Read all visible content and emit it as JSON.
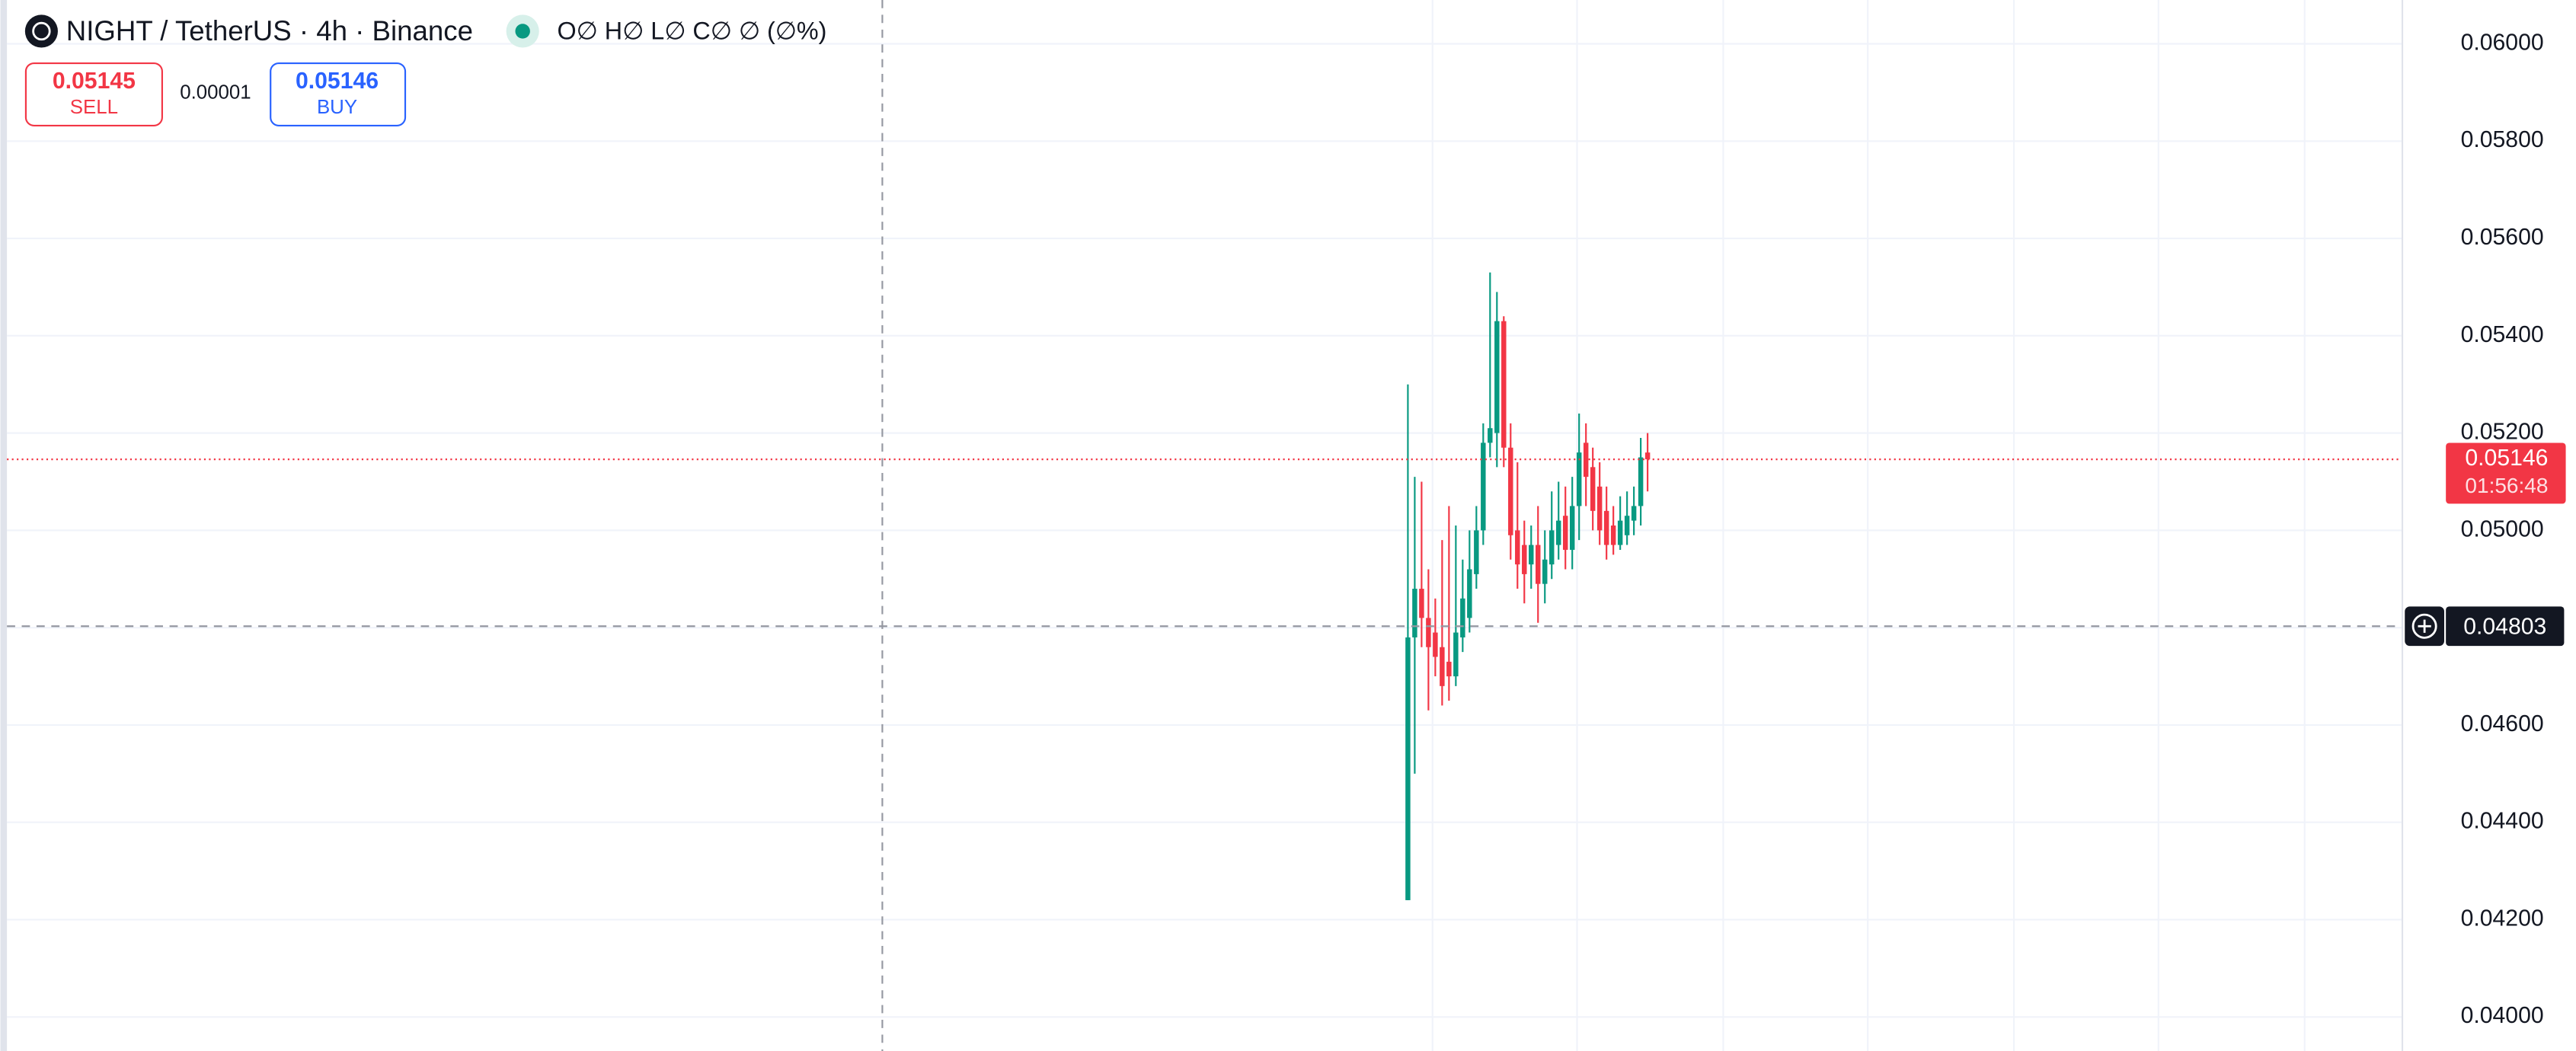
{
  "chart_data": {
    "type": "candlestick",
    "title": "NIGHT / TetherUS · 4h · Binance",
    "ohlc_label": "O∅ H∅ L∅ C∅ ∅ (∅%)",
    "categories": [
      null,
      null,
      null,
      null,
      null,
      null,
      null,
      null,
      null,
      null,
      null,
      null,
      null,
      null,
      null,
      null,
      null,
      null,
      null,
      null,
      null,
      null,
      null,
      null,
      null,
      null,
      null,
      null,
      null,
      null,
      null,
      null,
      null,
      null,
      null,
      null
    ],
    "open": [
      0.0424,
      0.0478,
      0.0488,
      0.0482,
      0.0479,
      0.0476,
      0.0473,
      0.047,
      0.0478,
      0.0482,
      0.0491,
      0.05,
      0.0518,
      0.052,
      0.0543,
      0.0517,
      0.05,
      0.0497,
      0.0493,
      0.0497,
      0.0489,
      0.0493,
      0.0497,
      0.0503,
      0.0496,
      0.0505,
      0.0518,
      0.0513,
      0.0509,
      0.0504,
      0.0501,
      0.0497,
      0.0499,
      0.0502,
      0.0505,
      0.0516
    ],
    "high": [
      0.053,
      0.0511,
      0.051,
      0.0492,
      0.0486,
      0.0498,
      0.0505,
      0.0501,
      0.0494,
      0.05,
      0.0505,
      0.0522,
      0.0553,
      0.0549,
      0.0544,
      0.0522,
      0.0514,
      0.0502,
      0.0501,
      0.0505,
      0.05,
      0.0508,
      0.051,
      0.0509,
      0.0511,
      0.0524,
      0.0522,
      0.0517,
      0.0514,
      0.0509,
      0.0505,
      0.0507,
      0.0508,
      0.0509,
      0.0519,
      0.052
    ],
    "low": [
      0.0424,
      0.045,
      0.0476,
      0.0463,
      0.047,
      0.0464,
      0.0465,
      0.0468,
      0.0475,
      0.0479,
      0.0488,
      0.0497,
      0.0515,
      0.0513,
      0.0513,
      0.0494,
      0.0488,
      0.0485,
      0.0488,
      0.0481,
      0.0485,
      0.049,
      0.0494,
      0.0492,
      0.0492,
      0.0498,
      0.0505,
      0.05,
      0.0497,
      0.0494,
      0.0495,
      0.0496,
      0.0497,
      0.0499,
      0.0501,
      0.0508
    ],
    "close": [
      0.0478,
      0.0488,
      0.0482,
      0.0476,
      0.0474,
      0.0468,
      0.047,
      0.0479,
      0.0486,
      0.0492,
      0.05,
      0.0518,
      0.0521,
      0.0543,
      0.0517,
      0.0499,
      0.0493,
      0.0491,
      0.0497,
      0.0489,
      0.0494,
      0.05,
      0.0502,
      0.0496,
      0.0505,
      0.0516,
      0.0511,
      0.0504,
      0.05,
      0.0497,
      0.0497,
      0.0502,
      0.0503,
      0.0505,
      0.0515,
      0.05146
    ],
    "up_color": "#089981",
    "down_color": "#f23645",
    "ylim": [
      0.0393,
      0.0609
    ],
    "yticks": [
      {
        "value": 0.04,
        "label": "0.04000"
      },
      {
        "value": 0.042,
        "label": "0.04200"
      },
      {
        "value": 0.044,
        "label": "0.04400"
      },
      {
        "value": 0.046,
        "label": "0.04600"
      },
      {
        "value": 0.048,
        "label": "0.04800"
      },
      {
        "value": 0.05,
        "label": "0.05000"
      },
      {
        "value": 0.052,
        "label": "0.05200"
      },
      {
        "value": 0.054,
        "label": "0.05400"
      },
      {
        "value": 0.056,
        "label": "0.05600"
      },
      {
        "value": 0.058,
        "label": "0.05800"
      },
      {
        "value": 0.06,
        "label": "0.06000"
      }
    ],
    "grid": true,
    "last_price": 0.05146,
    "countdown": "01:56:48",
    "crosshair_price": 0.04803
  },
  "order_panel": {
    "sell_price": 0.05145,
    "sell_label": "SELL",
    "spread": {
      "value": 1e-05,
      "label": "0.00001"
    },
    "buy_price": 0.05146,
    "buy_label": "BUY"
  }
}
